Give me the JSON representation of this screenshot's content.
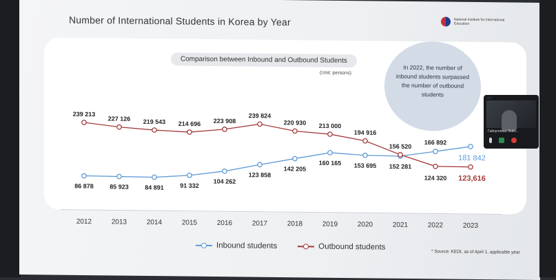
{
  "slide": {
    "title": "Number of International Students in Korea by Year",
    "logo_text": "National Institute for International Education",
    "subtitle": "Comparison between Inbound and Outbound Students",
    "unit": "(Unit: persons)",
    "note": "In 2022, the number of inbound students surpassed the number of outbound students",
    "source": "* Source: KEDI, as of April 1, applicable year"
  },
  "legend": {
    "inbound": "Inbound students",
    "outbound": "Outbound students"
  },
  "video_call": {
    "participant_name": "Гайнуллина Лейл..."
  },
  "colors": {
    "inbound": "#5d9ad6",
    "outbound": "#a43a3a"
  },
  "chart_data": {
    "type": "line",
    "title": "Comparison between Inbound and Outbound Students",
    "categories": [
      "2012",
      "2013",
      "2014",
      "2015",
      "2016",
      "2017",
      "2018",
      "2019",
      "2020",
      "2021",
      "2022",
      "2023"
    ],
    "series": [
      {
        "name": "Inbound students",
        "values": [
          86878,
          85923,
          84891,
          91332,
          104262,
          123858,
          142205,
          160165,
          153695,
          152281,
          166892,
          181842
        ],
        "labels": [
          "86 878",
          "85 923",
          "84 891",
          "91 332",
          "104 262",
          "123 858",
          "142 205",
          "160 165",
          "153 695",
          "152 281",
          "166 892",
          "181 842"
        ]
      },
      {
        "name": "Outbound students",
        "values": [
          239213,
          227126,
          219543,
          214696,
          223908,
          239824,
          220930,
          213000,
          194916,
          156520,
          124320,
          123616
        ],
        "labels": [
          "239 213",
          "227 126",
          "219 543",
          "214 696",
          "223 908",
          "239 824",
          "220 930",
          "213 000",
          "194 916",
          "156 520",
          "124 320",
          "123,616"
        ]
      }
    ],
    "xlabel": "",
    "ylabel": "",
    "grid": false,
    "legend_position": "bottom"
  }
}
